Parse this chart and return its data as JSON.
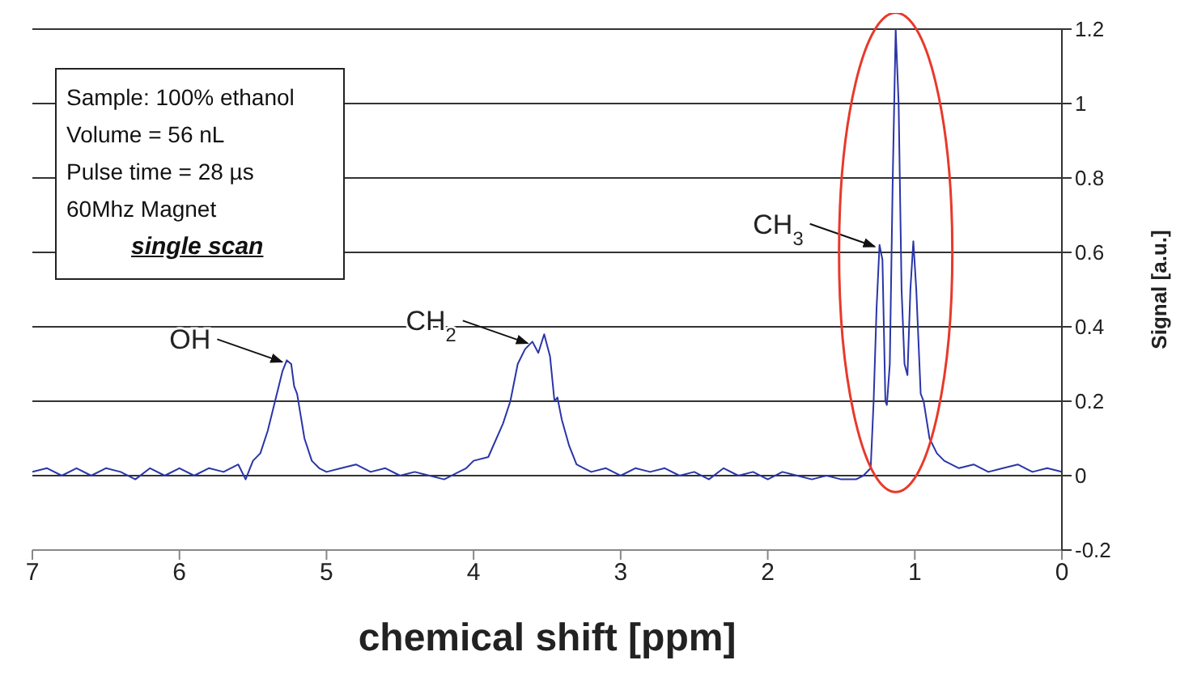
{
  "chart_data": {
    "type": "line",
    "xlabel": "chemical shift [ppm]",
    "ylabel": "Signal [a.u.]",
    "xlim": [
      7,
      0
    ],
    "xticks": [
      7,
      6,
      5,
      4,
      3,
      2,
      1,
      0
    ],
    "ylim": [
      -0.2,
      1.2
    ],
    "yticks": [
      -0.2,
      0,
      0.2,
      0.4,
      0.6,
      0.8,
      1,
      1.2
    ],
    "grid": "y",
    "marker": "none",
    "line_style": "solid",
    "x": [
      7.0,
      6.9,
      6.8,
      6.7,
      6.6,
      6.5,
      6.4,
      6.3,
      6.2,
      6.1,
      6.0,
      5.9,
      5.8,
      5.7,
      5.6,
      5.55,
      5.5,
      5.45,
      5.4,
      5.35,
      5.3,
      5.27,
      5.24,
      5.22,
      5.2,
      5.15,
      5.1,
      5.05,
      5.0,
      4.9,
      4.8,
      4.7,
      4.6,
      4.5,
      4.4,
      4.3,
      4.2,
      4.1,
      4.05,
      4.0,
      3.9,
      3.8,
      3.75,
      3.7,
      3.65,
      3.6,
      3.56,
      3.52,
      3.48,
      3.45,
      3.43,
      3.4,
      3.35,
      3.3,
      3.25,
      3.2,
      3.1,
      3.0,
      2.9,
      2.8,
      2.7,
      2.6,
      2.5,
      2.4,
      2.3,
      2.2,
      2.1,
      2.0,
      1.9,
      1.8,
      1.7,
      1.6,
      1.5,
      1.4,
      1.35,
      1.3,
      1.28,
      1.26,
      1.24,
      1.22,
      1.2,
      1.19,
      1.17,
      1.15,
      1.13,
      1.11,
      1.09,
      1.07,
      1.05,
      1.03,
      1.01,
      0.99,
      0.96,
      0.94,
      0.9,
      0.85,
      0.8,
      0.7,
      0.6,
      0.5,
      0.4,
      0.3,
      0.2,
      0.1,
      0.0
    ],
    "series": [
      {
        "color": "#2a35a8",
        "values": [
          0.01,
          0.02,
          0.0,
          0.02,
          0.0,
          0.02,
          0.01,
          -0.01,
          0.02,
          0.0,
          0.02,
          0.0,
          0.02,
          0.01,
          0.03,
          -0.01,
          0.04,
          0.06,
          0.12,
          0.2,
          0.28,
          0.31,
          0.3,
          0.24,
          0.22,
          0.1,
          0.04,
          0.02,
          0.01,
          0.02,
          0.03,
          0.01,
          0.02,
          0.0,
          0.01,
          0.0,
          -0.01,
          0.01,
          0.02,
          0.04,
          0.05,
          0.14,
          0.2,
          0.3,
          0.34,
          0.36,
          0.33,
          0.38,
          0.32,
          0.2,
          0.21,
          0.15,
          0.08,
          0.03,
          0.02,
          0.01,
          0.02,
          0.0,
          0.02,
          0.01,
          0.02,
          0.0,
          0.01,
          -0.01,
          0.02,
          0.0,
          0.01,
          -0.01,
          0.01,
          0.0,
          -0.01,
          0.0,
          -0.01,
          -0.01,
          0.0,
          0.02,
          0.2,
          0.45,
          0.62,
          0.58,
          0.2,
          0.19,
          0.3,
          0.8,
          1.2,
          1.0,
          0.5,
          0.3,
          0.27,
          0.5,
          0.63,
          0.5,
          0.22,
          0.2,
          0.1,
          0.06,
          0.04,
          0.02,
          0.03,
          0.01,
          0.02,
          0.03,
          0.01,
          0.02,
          0.01
        ]
      }
    ],
    "annotations": [
      "Sample: 100% ethanol",
      "Volume = 56 nL",
      "Pulse time = 28 µs",
      "60Mhz Magnet",
      "single scan",
      {
        "text": "OH",
        "x": 5.27,
        "y": 0.31
      },
      {
        "text": "CH$_{2}$",
        "x": 3.6,
        "y": 0.36
      },
      {
        "text": "CH$_{3}$",
        "x": 1.24,
        "y": 0.62
      }
    ]
  }
}
